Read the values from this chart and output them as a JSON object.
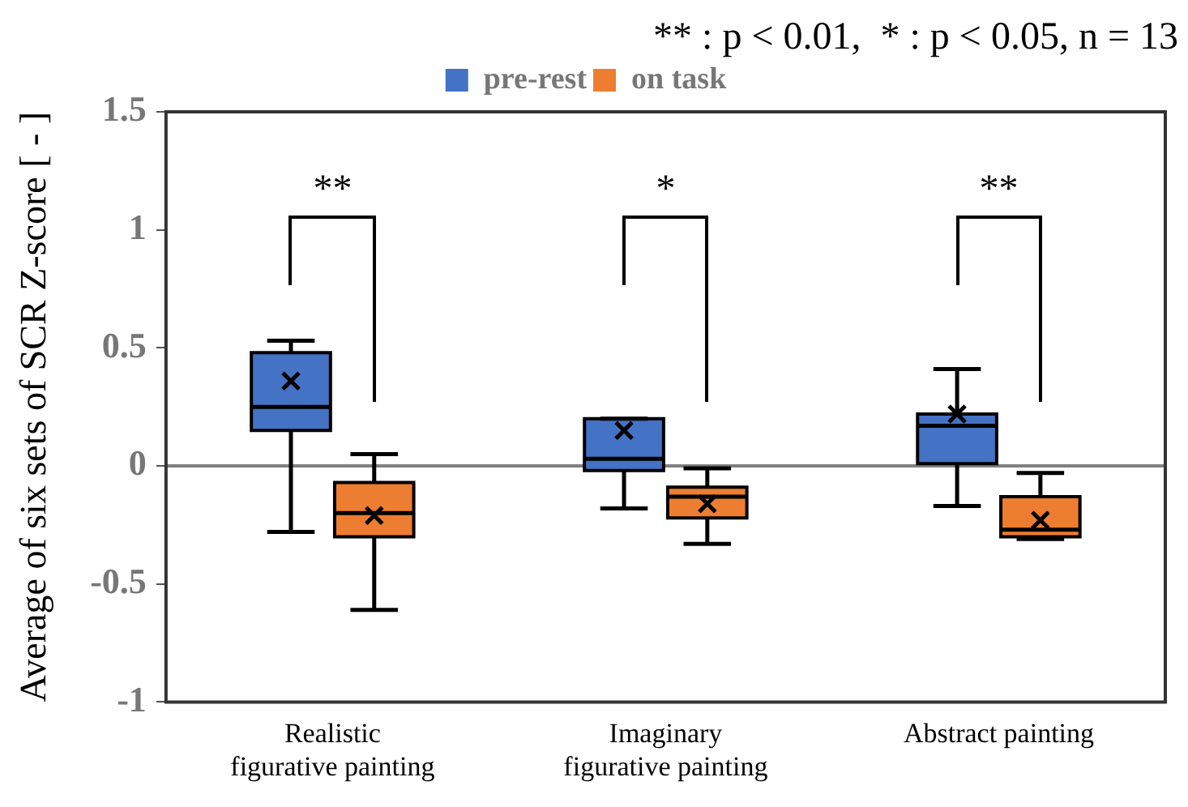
{
  "chart_data": {
    "type": "box",
    "ylabel": "Average of six sets of SCR Z-score [ - ]",
    "categories": [
      "Realistic\nfigurative painting",
      "Imaginary\nfigurative painting",
      "Abstract painting"
    ],
    "series": [
      {
        "name": "pre-rest",
        "color": "#4472c4",
        "boxes": [
          {
            "low": -0.28,
            "q1": 0.15,
            "median": 0.25,
            "q3": 0.48,
            "high": 0.53,
            "mean": 0.36
          },
          {
            "low": -0.18,
            "q1": -0.02,
            "median": 0.03,
            "q3": 0.2,
            "high": 0.2,
            "mean": 0.15
          },
          {
            "low": -0.17,
            "q1": 0.01,
            "median": 0.17,
            "q3": 0.22,
            "high": 0.41,
            "mean": 0.22
          }
        ]
      },
      {
        "name": "on task",
        "color": "#ed7d31",
        "boxes": [
          {
            "low": -0.61,
            "q1": -0.3,
            "median": -0.2,
            "q3": -0.07,
            "high": 0.05,
            "mean": -0.21
          },
          {
            "low": -0.33,
            "q1": -0.22,
            "median": -0.13,
            "q3": -0.09,
            "high": -0.01,
            "mean": -0.16
          },
          {
            "low": -0.31,
            "q1": -0.3,
            "median": -0.27,
            "q3": -0.13,
            "high": -0.03,
            "mean": -0.23
          }
        ]
      }
    ],
    "ylim": [
      -1,
      1.5
    ],
    "yticks": [
      -1,
      -0.5,
      0,
      0.5,
      1,
      1.5
    ],
    "grid": false,
    "legend": "top",
    "ref_lines": [
      {
        "axis": "y",
        "value": 0,
        "color": "#808080"
      }
    ],
    "annotations": [
      "** : p < 0.01,  * : p < 0.05, n = 13",
      "**",
      "*",
      "**"
    ]
  }
}
